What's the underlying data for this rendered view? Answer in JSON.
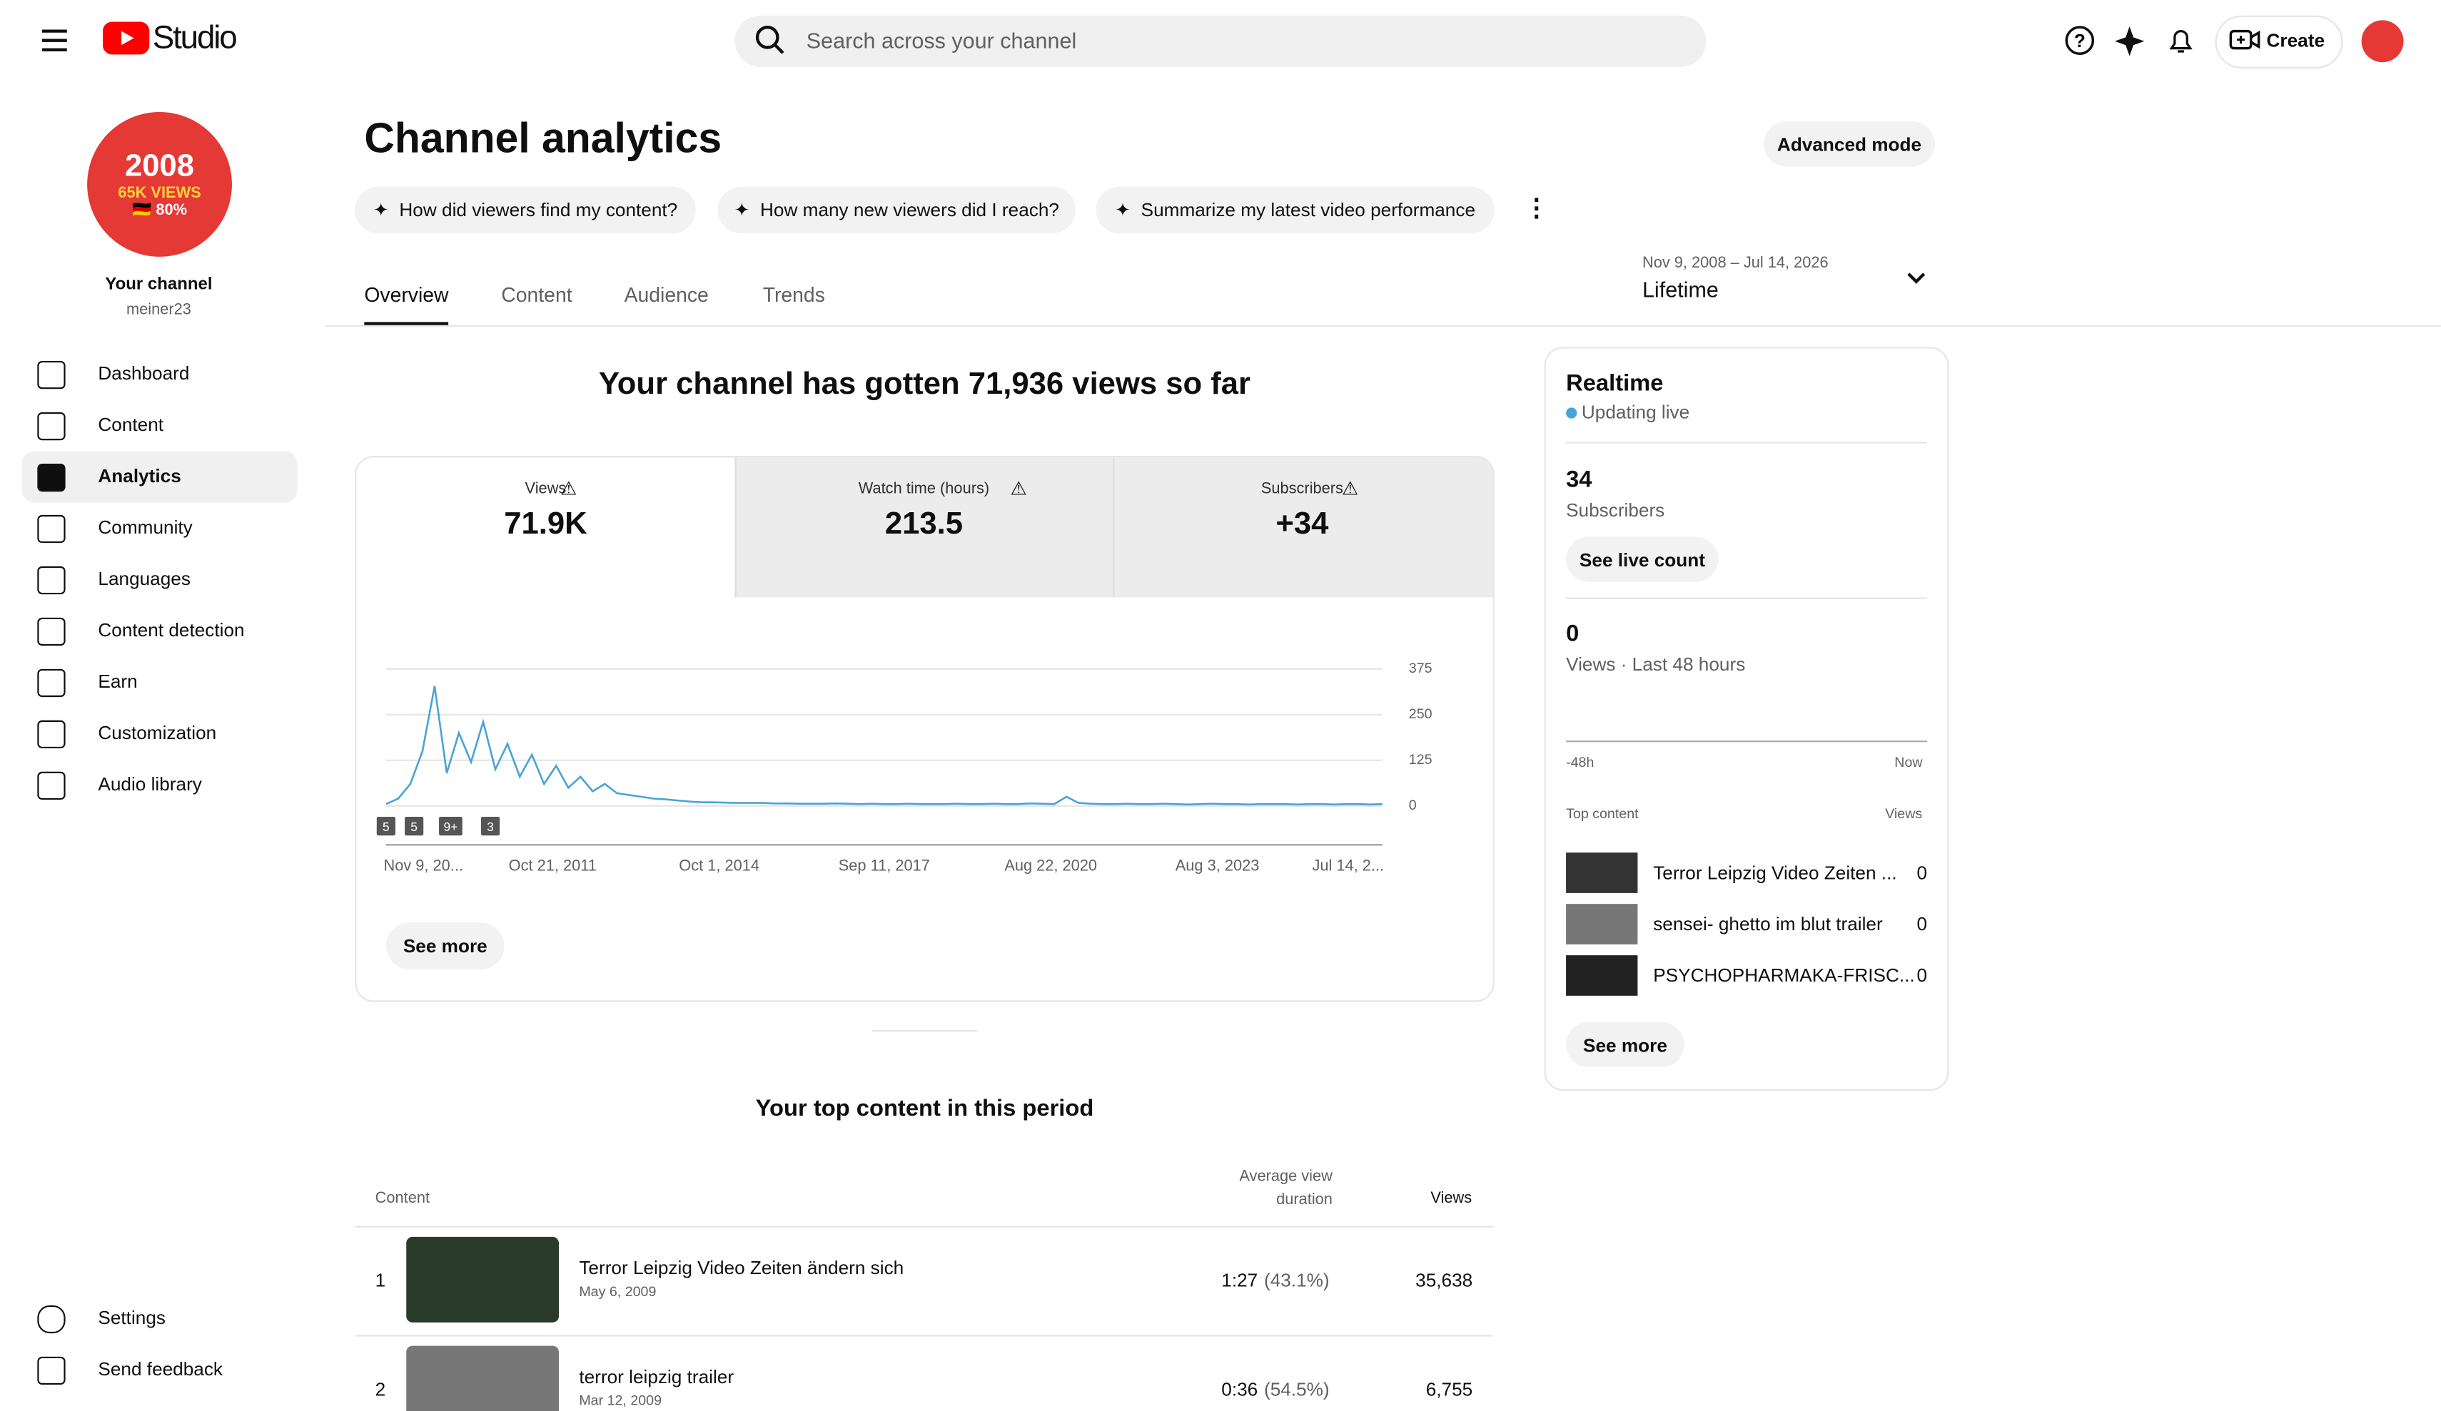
{
  "header": {
    "logo_text": "Studio",
    "search_placeholder": "Search across your channel",
    "create": "Create"
  },
  "sidebar": {
    "avatar_lines": [
      "2008",
      "65K VIEWS",
      "🇩🇪 80%"
    ],
    "channel_label": "Your channel",
    "channel_name": "meiner23",
    "nav": [
      "Dashboard",
      "Content",
      "Analytics",
      "Community",
      "Languages",
      "Content detection",
      "Earn",
      "Customization",
      "Audio library"
    ],
    "footer_nav": [
      "Settings",
      "Send feedback"
    ]
  },
  "main": {
    "title": "Channel analytics",
    "advanced": "Advanced mode",
    "prompts": [
      "How did viewers find my content?",
      "How many new viewers did I reach?",
      "Summarize my latest video performance"
    ],
    "tabs": [
      "Overview",
      "Content",
      "Audience",
      "Trends"
    ],
    "date_range": "Nov 9, 2008 – Jul 14, 2026",
    "period": "Lifetime",
    "headline": "Your channel has gotten 71,936 views so far",
    "metrics": [
      {
        "label": "Views",
        "value": "71.9K"
      },
      {
        "label": "Watch time (hours)",
        "value": "213.5"
      },
      {
        "label": "Subscribers",
        "value": "+34"
      }
    ],
    "see_more": "See more",
    "top_title": "Your top content in this period",
    "table": {
      "headers": [
        "Content",
        "Average view duration",
        "Views"
      ],
      "rows": [
        [
          "1",
          "Terror Leipzig Video Zeiten ändern sich",
          "May 6, 2009",
          "1:27",
          "(43.1%)",
          "35,638"
        ],
        [
          "2",
          "terror leipzig trailer",
          "Mar 12, 2009",
          "0:36",
          "(54.5%)",
          "6,755"
        ]
      ]
    }
  },
  "chart": {
    "type": "line",
    "color": "#4aa3d8",
    "ylim": [
      0,
      375
    ],
    "yticks": [
      0,
      125,
      250,
      375
    ],
    "x_labels": [
      "Nov 9, 20...",
      "Oct 21, 2011",
      "Oct 1, 2014",
      "Sep 11, 2017",
      "Aug 22, 2020",
      "Aug 3, 2023",
      "Jul 14, 2..."
    ],
    "annotations": [
      "5",
      "5",
      "9+",
      "3"
    ],
    "values": [
      5,
      20,
      60,
      150,
      328,
      90,
      200,
      120,
      230,
      100,
      170,
      80,
      140,
      60,
      110,
      50,
      80,
      40,
      60,
      35,
      30,
      25,
      20,
      18,
      15,
      12,
      10,
      10,
      9,
      8,
      8,
      8,
      7,
      7,
      6,
      6,
      6,
      7,
      6,
      5,
      6,
      5,
      5,
      6,
      5,
      5,
      5,
      6,
      5,
      5,
      6,
      5,
      5,
      7,
      6,
      5,
      25,
      8,
      6,
      5,
      5,
      6,
      5,
      5,
      6,
      5,
      4,
      5,
      6,
      5,
      5,
      4,
      5,
      5,
      5,
      4,
      5,
      5,
      4,
      5,
      5,
      4,
      5
    ]
  },
  "realtime": {
    "title": "Realtime",
    "status": "Updating live",
    "subs_value": "34",
    "subs_label": "Subscribers",
    "live_button": "See live count",
    "views_value": "0",
    "views_label": "Views · Last 48 hours",
    "axis_start": "-48h",
    "axis_end": "Now",
    "top_label": "Top content",
    "views_header": "Views",
    "items": [
      [
        "Terror Leipzig Video Zeiten ...",
        "0"
      ],
      [
        "sensei- ghetto im blut trailer",
        "0"
      ],
      [
        "PSYCHOPHARMAKA-FRISC...",
        "0"
      ]
    ],
    "see_more": "See more"
  }
}
